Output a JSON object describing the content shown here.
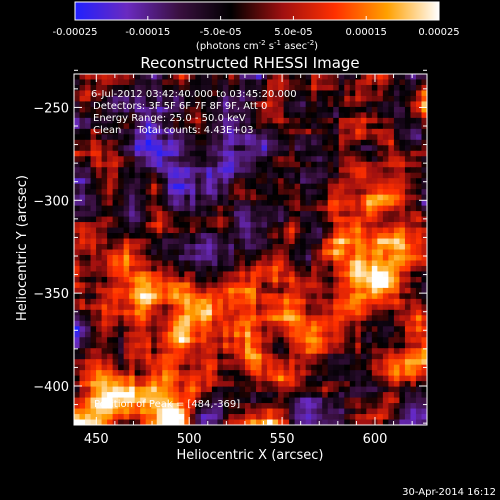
{
  "colorbar": {
    "ticks": [
      "-0.00025",
      "-0.00015",
      "-5.0e-05",
      "5.0e-05",
      "0.00015",
      "0.00025"
    ],
    "tick_values": [
      -0.00025,
      -0.00015,
      -5e-05,
      5e-05,
      0.00015,
      0.00025
    ],
    "range": [
      -0.00025,
      0.00025
    ],
    "units_prefix": "(photons cm",
    "units_exp1": "-2",
    "units_mid1": " s",
    "units_exp2": "-1",
    "units_mid2": " asec",
    "units_exp3": "-2",
    "units_suffix": ")",
    "palette": [
      "#2020ff",
      "#6a2ac0",
      "#3a1040",
      "#000000",
      "#a01010",
      "#ff3000",
      "#ffa000",
      "#ffffff"
    ]
  },
  "chart_data": {
    "type": "heatmap",
    "title": "Reconstructed RHESSI Image",
    "xlabel": "Heliocentric X (arcsec)",
    "ylabel": "Heliocentric Y (arcsec)",
    "xlim": [
      438,
      628
    ],
    "ylim": [
      -421,
      -232
    ],
    "x_ticks": [
      450,
      500,
      550,
      600
    ],
    "x_tick_labels": [
      "450",
      "500",
      "550",
      "600"
    ],
    "y_ticks": [
      -400,
      -350,
      -300,
      -250
    ],
    "y_tick_labels": [
      "−400",
      "−350",
      "−300",
      "−250"
    ],
    "annotations": [
      "6-Jul-2012 03:42:40.000 to 03:45:20.000",
      "Detectors: 3F 5F 6F 7F 8F 9F, Att 0",
      "Energy Range: 25.0 - 50.0 keV",
      "Clean     Total counts: 4.43E+03"
    ],
    "peak_label": "Position of Peak = [484,-369]",
    "peak_position": [
      484,
      -369
    ],
    "total_counts": 4430,
    "energy_range_kev": [
      25.0,
      50.0
    ]
  },
  "footer": {
    "timestamp": "30-Apr-2014 16:12"
  }
}
